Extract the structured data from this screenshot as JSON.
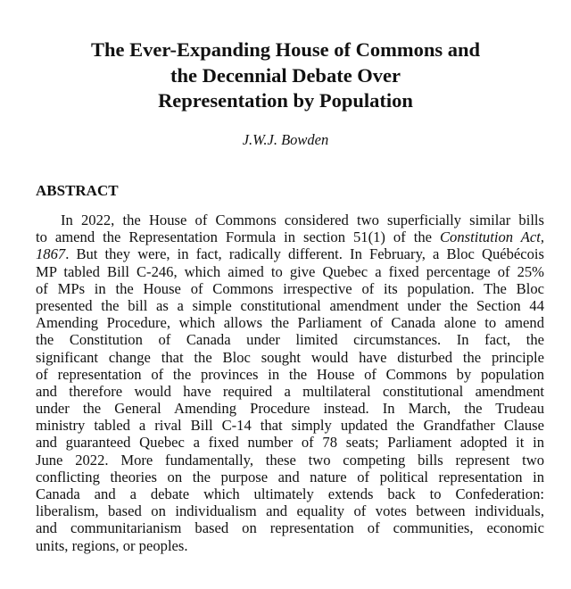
{
  "title_lines": [
    "The Ever-Expanding House of Commons and",
    "the Decennial Debate Over",
    "Representation by Population"
  ],
  "author": "J.W.J. Bowden",
  "abstract_heading": "ABSTRACT",
  "abstract_lines": [
    [
      {
        "t": "In 2022, the House of Commons considered two superficially similar bills"
      }
    ],
    [
      {
        "t": "to amend the Representation Formula in section 51(1) of the "
      },
      {
        "t": "Constitution Act,",
        "i": true
      }
    ],
    [
      {
        "t": "1867",
        "i": true
      },
      {
        "t": ". But they were, in fact, radically different. In February, a Bloc Québécois"
      }
    ],
    [
      {
        "t": "MP tabled Bill C-246, which aimed to give Quebec a fixed percentage of 25%"
      }
    ],
    [
      {
        "t": "of MPs in the House of Commons irrespective of its population. The Bloc"
      }
    ],
    [
      {
        "t": "presented the bill as a simple constitutional amendment under the Section 44"
      }
    ],
    [
      {
        "t": "Amending Procedure, which allows the Parliament of Canada alone to amend"
      }
    ],
    [
      {
        "t": "the Constitution of Canada under limited circumstances. In fact, the"
      }
    ],
    [
      {
        "t": "significant change that the Bloc sought would have disturbed the principle"
      }
    ],
    [
      {
        "t": "of representation of the provinces in the House of Commons by population"
      }
    ],
    [
      {
        "t": "and therefore would have required a multilateral constitutional amendment"
      }
    ],
    [
      {
        "t": "under the General Amending Procedure instead. In March, the Trudeau"
      }
    ],
    [
      {
        "t": "ministry tabled a rival Bill C-14 that simply updated the Grandfather Clause"
      }
    ],
    [
      {
        "t": "and guaranteed Quebec a fixed number of 78 seats; Parliament adopted it in"
      }
    ],
    [
      {
        "t": "June 2022. More fundamentally, these two competing bills represent two"
      }
    ],
    [
      {
        "t": "conflicting theories on the purpose and nature of political representation in"
      }
    ],
    [
      {
        "t": "Canada and a debate which ultimately extends back to Confederation:"
      }
    ],
    [
      {
        "t": "liberalism, based on individualism and equality of votes between individuals,"
      }
    ],
    [
      {
        "t": "and communitarianism based on representation of communities, economic"
      }
    ],
    [
      {
        "t": "units, regions, or peoples."
      }
    ]
  ]
}
